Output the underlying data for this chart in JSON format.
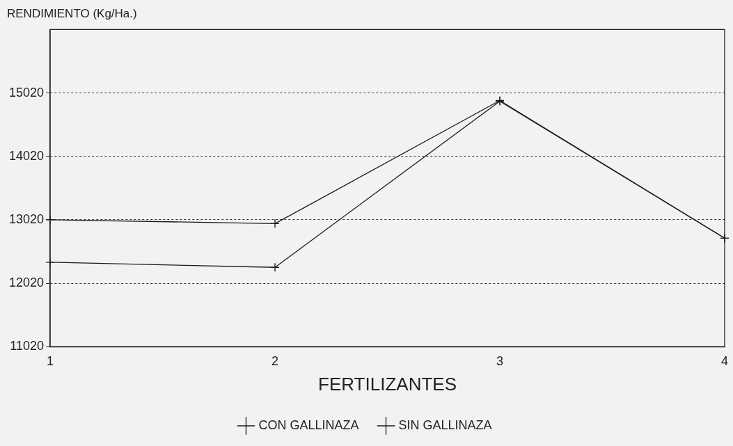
{
  "chart_data": {
    "type": "line",
    "xlabel": "FERTILIZANTES",
    "ylabel": "RENDIMIENTO (Kg/Ha.)",
    "x": [
      1,
      2,
      3,
      4
    ],
    "xlim": [
      1,
      4
    ],
    "xticks": [
      1,
      2,
      3,
      4
    ],
    "ylim": [
      11020,
      16020
    ],
    "yticks": [
      11020,
      12020,
      13020,
      14020,
      15020
    ],
    "series": [
      {
        "name": "CON GALLINAZA",
        "color": "#1a1a1a",
        "marker": "cross",
        "values": [
          13020,
          12960,
          14900,
          12730
        ]
      },
      {
        "name": "SIN GALLINAZA",
        "color": "#1a1a1a",
        "marker": "cross",
        "values": [
          12350,
          12270,
          14890,
          12730
        ]
      }
    ],
    "grid": "y",
    "legend": "bottom",
    "line_style": "solid"
  }
}
